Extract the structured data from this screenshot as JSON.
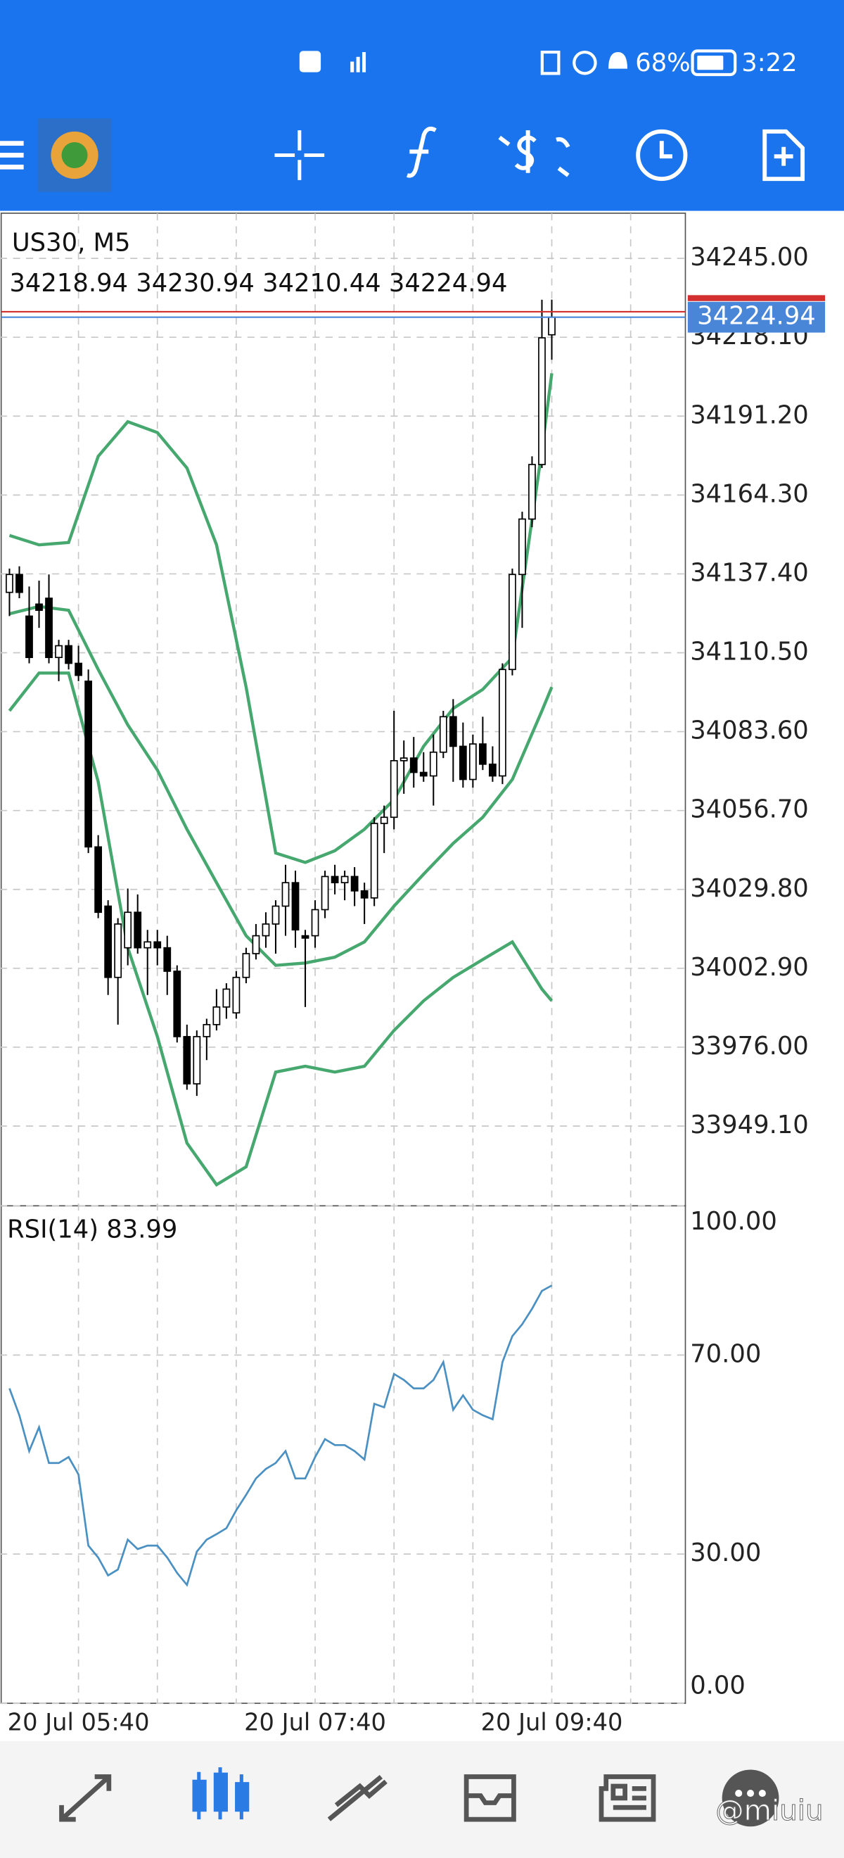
{
  "status_bar": {
    "battery": "68%",
    "time": "3:22"
  },
  "chart_data": {
    "type": "candlestick",
    "symbol": "US30, M5",
    "xlim": [
      -0.96,
      68.55
    ],
    "xticks": [
      {
        "value": 7,
        "label": "20 Jul 05:40"
      },
      {
        "value": 31,
        "label": "20 Jul 07:40"
      },
      {
        "value": 55,
        "label": "20 Jul 09:40"
      }
    ],
    "xgrid": [
      7,
      15,
      23,
      31,
      39,
      47,
      55,
      63
    ],
    "ylim": [
      33921.9,
      34260.4
    ],
    "yticks": [
      {
        "value": 34245,
        "label": "34245.00"
      },
      {
        "value": 34218.1,
        "label": "34218.10"
      },
      {
        "value": 34191.2,
        "label": "34191.20"
      },
      {
        "value": 34164.3,
        "label": "34164.30"
      },
      {
        "value": 34137.4,
        "label": "34137.40"
      },
      {
        "value": 34110.5,
        "label": "34110.50"
      },
      {
        "value": 34083.6,
        "label": "34083.60"
      },
      {
        "value": 34056.7,
        "label": "34056.70"
      },
      {
        "value": 34029.8,
        "label": "34029.80"
      },
      {
        "value": 34002.9,
        "label": "34002.90"
      },
      {
        "value": 33976,
        "label": "33976.00"
      },
      {
        "value": 33949.1,
        "label": "33949.10"
      }
    ],
    "grid": true,
    "up_color": "#ffffff",
    "down_color": "#000000",
    "open": [
      34131.1,
      34137.2,
      34123.0,
      34127.1,
      34129.1,
      34108.9,
      34112.9,
      34106.9,
      34100.8,
      34044.3,
      34024.1,
      33999.8,
      34009.9,
      34022.0,
      34009.9,
      34011.9,
      34009.9,
      34001.9,
      33979.6,
      33963.5,
      33979.6,
      33983.7,
      33989.7,
      33987.7,
      33999.8,
      34007.9,
      34014.0,
      34018.0,
      34024.1,
      34032.1,
      34014.0,
      34014.0,
      34022.9,
      34034.2,
      34032.1,
      34034.2,
      34029.3,
      34026.9,
      34052.3,
      34054.4,
      34073.7,
      34074.6,
      34069.7,
      34068.5,
      34076.6,
      34088.7,
      34078.6,
      34067.3,
      34079.4,
      34072.5,
      34068.5,
      34104.8,
      34137.2,
      34156.1,
      34174.7,
      34218.94
    ],
    "high": [
      34139.2,
      34140.0,
      34133.1,
      34135.1,
      34137.2,
      34114.9,
      34114.9,
      34112.9,
      34104.8,
      34048.3,
      34026.1,
      34020.0,
      34030.1,
      34028.1,
      34016.0,
      34016.0,
      34014.0,
      34003.9,
      33983.7,
      33981.7,
      33985.7,
      33995.8,
      33997.8,
      34001.9,
      34009.9,
      34018.0,
      34022.0,
      34026.1,
      34038.2,
      34036.2,
      34016.0,
      34026.1,
      34036.2,
      34038.2,
      34036.2,
      34037.4,
      34032.1,
      34054.4,
      34058.4,
      34090.7,
      34080.6,
      34081.8,
      34076.6,
      34082.6,
      34090.7,
      34094.7,
      34086.7,
      34082.6,
      34088.7,
      34078.6,
      34106.9,
      34139.2,
      34158.6,
      34177.5,
      34230.9,
      34230.94
    ],
    "low": [
      34123.0,
      34129.1,
      34106.9,
      34119.0,
      34106.9,
      34100.8,
      34104.8,
      34100.8,
      34042.2,
      34020.0,
      33993.8,
      33983.7,
      34003.9,
      34007.9,
      33993.8,
      34003.9,
      33993.8,
      33977.6,
      33961.5,
      33959.4,
      33971.6,
      33981.7,
      33985.7,
      33985.7,
      33997.8,
      34005.9,
      34009.9,
      34007.9,
      34014.0,
      34009.9,
      33989.7,
      34009.9,
      34020.0,
      34028.1,
      34026.1,
      34024.1,
      34018.0,
      34024.1,
      34042.2,
      34050.3,
      34062.4,
      34064.5,
      34066.5,
      34058.4,
      34074.6,
      34066.5,
      34064.5,
      34064.5,
      34070.5,
      34066.5,
      34065.7,
      34102.8,
      34119.0,
      34153.3,
      34173.5,
      34210.44
    ],
    "close": [
      34137.2,
      34131.1,
      34108.9,
      34125.0,
      34108.9,
      34112.9,
      34106.9,
      34102.8,
      34044.3,
      34022.0,
      33999.8,
      34018.0,
      34022.0,
      34009.9,
      34011.9,
      34009.9,
      34001.9,
      33979.6,
      33963.5,
      33979.6,
      33983.7,
      33989.7,
      33995.8,
      33999.8,
      34007.9,
      34014.0,
      34018.0,
      34024.1,
      34032.1,
      34016.0,
      34013.2,
      34022.9,
      34034.2,
      34032.1,
      34034.2,
      34029.3,
      34026.9,
      34052.3,
      34054.4,
      34073.7,
      34074.6,
      34069.7,
      34068.5,
      34076.6,
      34088.7,
      34078.6,
      34067.3,
      34079.4,
      34072.5,
      34068.5,
      34104.8,
      34137.2,
      34156.1,
      34174.7,
      34217.9,
      34224.94
    ],
    "bands": [
      {
        "color": "#46a86e",
        "x": [
          0,
          3,
          6,
          9,
          12,
          15,
          18,
          21,
          24,
          27,
          30,
          33,
          36,
          39,
          42,
          45,
          48,
          51,
          54,
          55
        ],
        "values": [
          34150.5,
          34147.3,
          34148.1,
          34177.5,
          34189.3,
          34185.6,
          34173.5,
          34147.3,
          34098.8,
          34042.2,
          34039.0,
          34043.0,
          34050.3,
          34060.4,
          34078.6,
          34091.5,
          34098.0,
          34108.9,
          34179.6,
          34205.8
        ]
      },
      {
        "color": "#46a86e",
        "x": [
          0,
          3,
          6,
          9,
          12,
          15,
          18,
          21,
          24,
          27,
          30,
          33,
          36,
          39,
          42,
          45,
          48,
          51,
          54,
          55
        ],
        "values": [
          34123.8,
          34126.3,
          34125.0,
          34104.8,
          34085.9,
          34070.5,
          34050.3,
          34032.1,
          34014.0,
          34003.9,
          34004.7,
          34006.7,
          34011.9,
          34024.1,
          34035.0,
          34045.5,
          34054.4,
          34067.3,
          34090.7,
          34098.8
        ]
      },
      {
        "color": "#46a86e",
        "x": [
          0,
          3,
          6,
          9,
          12,
          15,
          18,
          21,
          24,
          27,
          30,
          33,
          36,
          39,
          42,
          45,
          48,
          51,
          54,
          55
        ],
        "values": [
          34090.7,
          34103.6,
          34103.6,
          34066.5,
          34009.9,
          33979.6,
          33943.3,
          33929.1,
          33935.2,
          33967.5,
          33969.5,
          33967.5,
          33969.5,
          33981.7,
          33991.8,
          33999.8,
          34005.9,
          34011.9,
          33995.8,
          33991.8
        ]
      }
    ],
    "bid_color": "#4a86d8",
    "ask": {
      "value": 34226.8,
      "color": "#d32f2f"
    },
    "rsi": {
      "label": "RSI(14)",
      "color": "#4a90c2",
      "ylim": [
        0,
        100
      ],
      "yticks": [
        {
          "value": 100,
          "label": "100.00"
        },
        {
          "value": 70,
          "label": "70.00"
        },
        {
          "value": 30,
          "label": "30.00"
        },
        {
          "value": 0,
          "label": "0.00"
        }
      ],
      "values": [
        63.3,
        57.9,
        50.7,
        55.5,
        48.3,
        48.3,
        49.5,
        46.0,
        31.7,
        29.3,
        25.7,
        26.9,
        32.9,
        31.0,
        31.7,
        31.7,
        29.3,
        26.2,
        23.8,
        30.5,
        32.9,
        34.0,
        35.2,
        38.8,
        41.9,
        45.2,
        47.1,
        48.3,
        50.7,
        45.2,
        45.2,
        49.5,
        53.1,
        51.9,
        51.9,
        50.7,
        49.0,
        60.2,
        59.5,
        66.2,
        65.0,
        63.3,
        63.3,
        65.0,
        68.6,
        59.0,
        61.9,
        59.0,
        57.9,
        57.1,
        68.6,
        73.8,
        76.2,
        79.3,
        82.9,
        83.99
      ]
    }
  },
  "watermark": "@miuiu"
}
